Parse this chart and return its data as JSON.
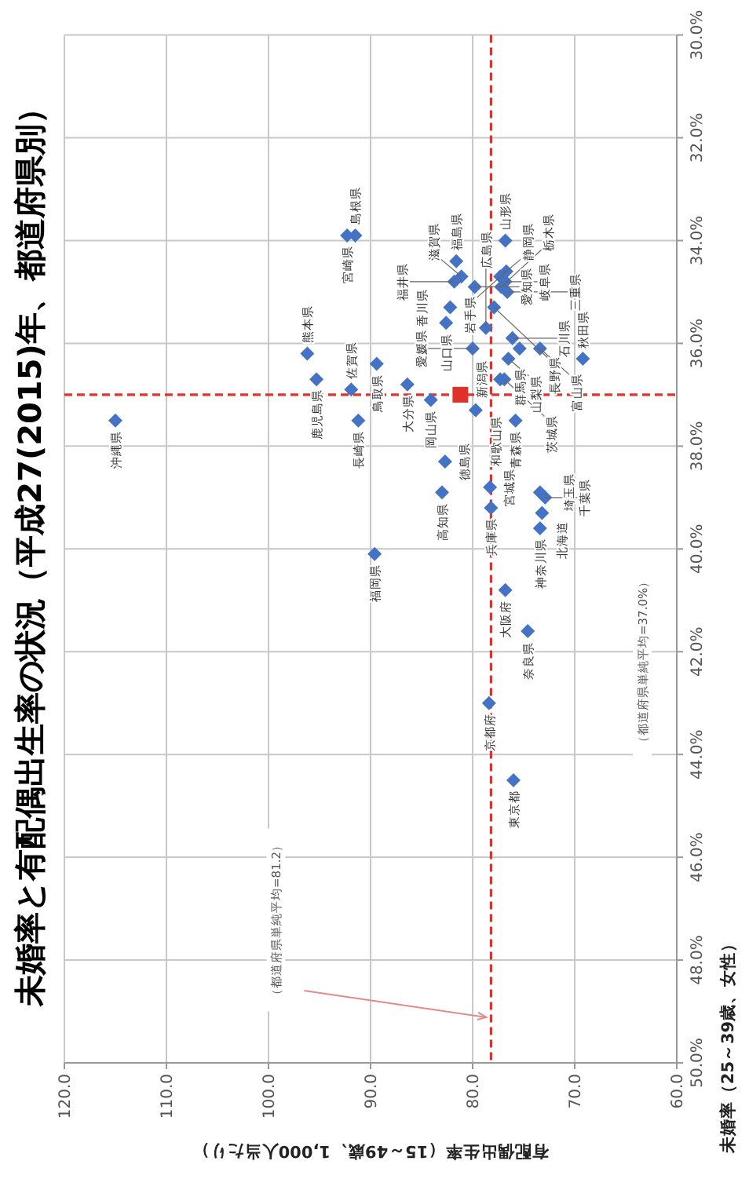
{
  "chart_data": {
    "type": "scatter",
    "title": "未婚率と有配偶出生率の状況（平成27(2015)年、都道府県別）",
    "xlabel": "有配偶出生率（15～49歳、1,000人当たり）",
    "ylabel": "未婚率（25～39歳、女性）",
    "xlim": [
      120,
      60
    ],
    "xticks": [
      {
        "value": 120,
        "label": "120.0"
      },
      {
        "value": 110,
        "label": "110.0"
      },
      {
        "value": 100,
        "label": "100.0"
      },
      {
        "value": 90,
        "label": "90.0"
      },
      {
        "value": 80,
        "label": "80.0"
      },
      {
        "value": 70,
        "label": "70.0"
      },
      {
        "value": 60,
        "label": "60.0"
      }
    ],
    "ylim": [
      50,
      30
    ],
    "yticks": [
      {
        "value": 30,
        "label": "30.0%"
      },
      {
        "value": 32,
        "label": "32.0%"
      },
      {
        "value": 34,
        "label": "34.0%"
      },
      {
        "value": 36,
        "label": "36.0%"
      },
      {
        "value": 38,
        "label": "38.0%"
      },
      {
        "value": 40,
        "label": "40.0%"
      },
      {
        "value": 42,
        "label": "42.0%"
      },
      {
        "value": 44,
        "label": "44.0%"
      },
      {
        "value": 46,
        "label": "46.0%"
      },
      {
        "value": 48,
        "label": "48.0%"
      },
      {
        "value": 50,
        "label": "50.0%"
      }
    ],
    "grid": true,
    "marker": "diamond",
    "series": [
      {
        "color": "#4472c4",
        "values": [
          37.5,
          36.2,
          36.7,
          33.9,
          33.9,
          36.9,
          37.5,
          36.4,
          36.8,
          40.1,
          37.1,
          38.3,
          38.9,
          35.3,
          35.6,
          35.7,
          36.1,
          37.3,
          34.4,
          34.7,
          34.8,
          34.9,
          34.0,
          34.7,
          34.8,
          35.0,
          34.6,
          34.9,
          35.3,
          35.9,
          36.1,
          36.1,
          36.3,
          36.3,
          36.7,
          36.7,
          37.5,
          38.8,
          39.2,
          38.9,
          39.0,
          39.3,
          39.6,
          40.8,
          41.6,
          43.0,
          44.5
        ],
        "x": [
          115.0,
          96.2,
          95.3,
          92.3,
          91.5,
          91.9,
          91.2,
          89.4,
          86.4,
          89.6,
          84.1,
          82.7,
          83.0,
          82.2,
          82.6,
          78.7,
          80.0,
          79.7,
          81.6,
          81.1,
          81.8,
          79.8,
          76.8,
          77.3,
          76.8,
          76.6,
          76.7,
          77.2,
          77.9,
          76.1,
          75.4,
          73.4,
          69.2,
          76.5,
          77.3,
          76.9,
          75.8,
          78.3,
          78.2,
          73.4,
          72.9,
          73.2,
          73.4,
          76.8,
          74.6,
          78.4,
          76.0
        ]
      },
      {
        "color": "#e0302a",
        "marker": "square",
        "values": [
          37.0
        ],
        "x": [
          81.2
        ]
      }
    ],
    "ref_lines": [
      {
        "axis": "y",
        "value": 37.0,
        "color": "#e0302a",
        "line_style": "dashed"
      },
      {
        "axis": "x",
        "value": 78.2,
        "color": "#e0302a",
        "line_style": "dashed"
      }
    ],
    "annotations": [
      {
        "text": "沖縄県",
        "x": 115.0,
        "y": 37.5
      },
      {
        "text": "熊本県",
        "x": 96.2,
        "y": 36.2
      },
      {
        "text": "鹿児島県",
        "x": 95.3,
        "y": 36.7
      },
      {
        "text": "宮崎県",
        "x": 92.3,
        "y": 33.9
      },
      {
        "text": "島根県",
        "x": 91.5,
        "y": 33.9
      },
      {
        "text": "佐賀県",
        "x": 91.9,
        "y": 36.9
      },
      {
        "text": "長崎県",
        "x": 91.2,
        "y": 37.5
      },
      {
        "text": "鳥取県",
        "x": 89.4,
        "y": 36.4
      },
      {
        "text": "大分県",
        "x": 86.4,
        "y": 36.8
      },
      {
        "text": "福岡県",
        "x": 89.6,
        "y": 40.1
      },
      {
        "text": "岡山県",
        "x": 84.1,
        "y": 37.1
      },
      {
        "text": "徳島県",
        "x": 82.7,
        "y": 38.3
      },
      {
        "text": "高知県",
        "x": 83.0,
        "y": 38.9
      },
      {
        "text": "香川県",
        "x": 82.2,
        "y": 35.3
      },
      {
        "text": "山口県",
        "x": 82.6,
        "y": 35.6
      },
      {
        "text": "広島県",
        "x": 78.7,
        "y": 35.7
      },
      {
        "text": "愛媛県",
        "x": 80.0,
        "y": 36.1
      },
      {
        "text": "和歌山県",
        "x": 79.7,
        "y": 37.3
      },
      {
        "text": "福島県",
        "x": 81.6,
        "y": 34.4
      },
      {
        "text": "滋賀県",
        "x": 81.1,
        "y": 34.7
      },
      {
        "text": "福井県",
        "x": 81.8,
        "y": 34.8
      },
      {
        "text": "愛知県",
        "x": 79.8,
        "y": 34.9
      },
      {
        "text": "山形県",
        "x": 76.8,
        "y": 34.0
      },
      {
        "text": "静岡県",
        "x": 77.3,
        "y": 34.7
      },
      {
        "text": "岐阜県",
        "x": 76.8,
        "y": 34.8
      },
      {
        "text": "三重県",
        "x": 76.6,
        "y": 35.0
      },
      {
        "text": "岩手県",
        "x": 76.7,
        "y": 34.6
      },
      {
        "text": "栃木県",
        "x": 77.2,
        "y": 34.9
      },
      {
        "text": "長野県",
        "x": 77.9,
        "y": 35.3
      },
      {
        "text": "石川県",
        "x": 76.1,
        "y": 35.9
      },
      {
        "text": "群馬県",
        "x": 75.4,
        "y": 36.1
      },
      {
        "text": "富山県",
        "x": 73.4,
        "y": 36.1
      },
      {
        "text": "秋田県",
        "x": 69.2,
        "y": 36.3
      },
      {
        "text": "山梨県",
        "x": 76.5,
        "y": 36.3
      },
      {
        "text": "新潟県",
        "x": 77.3,
        "y": 36.7
      },
      {
        "text": "茨城県",
        "x": 76.9,
        "y": 36.7
      },
      {
        "text": "青森県",
        "x": 75.8,
        "y": 37.5
      },
      {
        "text": "宮城県",
        "x": 78.3,
        "y": 38.8
      },
      {
        "text": "兵庫県",
        "x": 78.2,
        "y": 39.2
      },
      {
        "text": "埼玉県",
        "x": 73.4,
        "y": 38.9
      },
      {
        "text": "千葉県",
        "x": 72.9,
        "y": 39.0
      },
      {
        "text": "北海道",
        "x": 73.2,
        "y": 39.3
      },
      {
        "text": "神奈川県",
        "x": 73.4,
        "y": 39.6
      },
      {
        "text": "大阪府",
        "x": 76.8,
        "y": 40.8
      },
      {
        "text": "奈良県",
        "x": 74.6,
        "y": 41.6
      },
      {
        "text": "京都府",
        "x": 78.4,
        "y": 43.0
      },
      {
        "text": "東京都",
        "x": 76.0,
        "y": 44.5
      },
      "（都道府県単純平均=37.0%）",
      "（都道府県単純平均=81.2）"
    ]
  }
}
